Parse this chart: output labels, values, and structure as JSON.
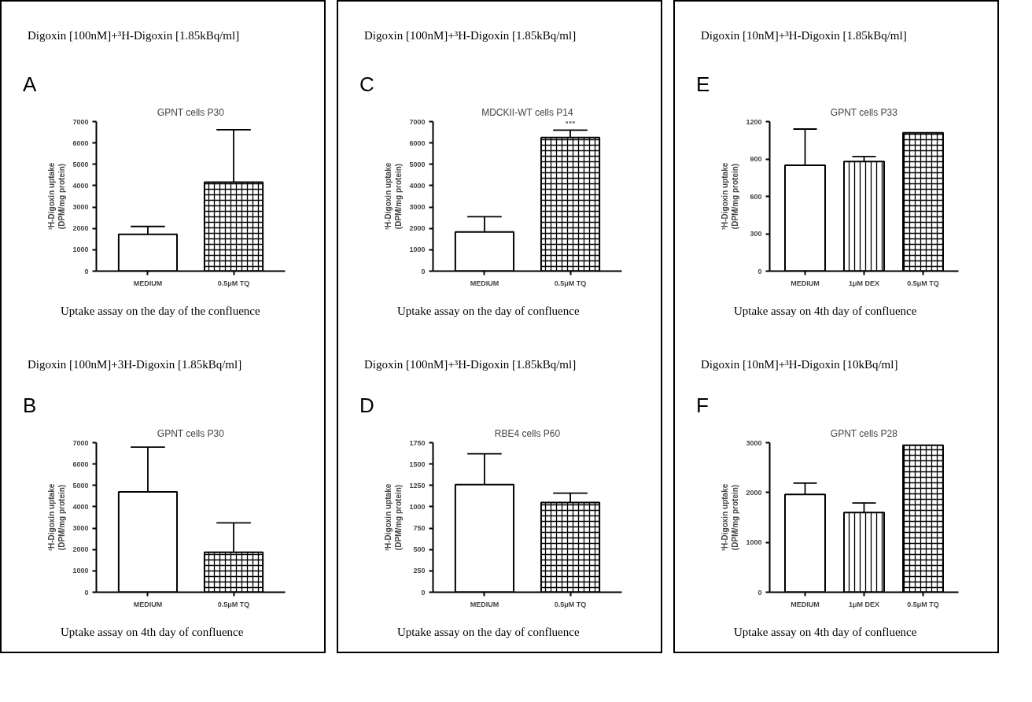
{
  "chart_data": [
    {
      "type": "bar",
      "title": "GPNT cells P30",
      "ylabel": "³H-Digoxin uptake\n(DPM/mg protein)",
      "categories": [
        "MEDIUM",
        "0.5μM TQ"
      ],
      "values": [
        1720,
        4160
      ],
      "errors": [
        [
          1720,
          2090
        ],
        [
          4160,
          6620
        ]
      ],
      "colors": [
        "#ffffff",
        "#ffffff"
      ],
      "ylim": [
        0,
        7000
      ],
      "yticks": [
        0,
        1000,
        2000,
        3000,
        4000,
        5000,
        6000,
        7000
      ],
      "grid": false,
      "annotations": [
        "A",
        "Digoxin [100nM]+³H-Digoxin [1.85kBq/ml]",
        "Uptake assay on the day of the confluence"
      ]
    },
    {
      "type": "bar",
      "title": "GPNT cells P30",
      "ylabel": "³H-Digoxin uptake\n(DPM/mg protein)",
      "categories": [
        "MEDIUM",
        "0.5μM TQ"
      ],
      "values": [
        4700,
        1870
      ],
      "errors": [
        [
          4700,
          6790
        ],
        [
          1870,
          3250
        ]
      ],
      "colors": [
        "#ffffff",
        "#ffffff"
      ],
      "ylim": [
        0,
        7000
      ],
      "yticks": [
        0,
        1000,
        2000,
        3000,
        4000,
        5000,
        6000,
        7000
      ],
      "grid": false,
      "annotations": [
        "B",
        "Digoxin [100nM]+3H-Digoxin [1.85kBq/ml]",
        "Uptake assay on 4th day of confluence"
      ]
    },
    {
      "type": "bar",
      "title": "MDCKII-WT cells P14",
      "ylabel": "³H-Digoxin uptake\n(DPM/mg protein)",
      "categories": [
        "MEDIUM",
        "0.5μM TQ"
      ],
      "values": [
        1830,
        6250
      ],
      "errors": [
        [
          1830,
          2550
        ],
        [
          6250,
          6600
        ]
      ],
      "colors": [
        "#ffffff",
        "#ffffff"
      ],
      "ylim": [
        0,
        7000
      ],
      "yticks": [
        0,
        1000,
        2000,
        3000,
        4000,
        5000,
        6000,
        7000
      ],
      "grid": false,
      "annotations": [
        "C",
        "Digoxin [100nM]+³H-Digoxin [1.85kBq/ml]",
        "Uptake assay on the day of confluence",
        {
          "text": "***",
          "x": "0.5μM TQ",
          "y": 6600
        }
      ]
    },
    {
      "type": "bar",
      "title": "RBE4 cells P60",
      "ylabel": "³H-Digoxin uptake\n(DPM/mg protein)",
      "categories": [
        "MEDIUM",
        "0.5μM TQ"
      ],
      "values": [
        1260,
        1050
      ],
      "errors": [
        [
          1260,
          1620
        ],
        [
          1050,
          1160
        ]
      ],
      "colors": [
        "#ffffff",
        "#ffffff"
      ],
      "ylim": [
        0,
        1750
      ],
      "yticks": [
        0,
        250,
        500,
        750,
        1000,
        1250,
        1500,
        1750
      ],
      "grid": false,
      "annotations": [
        "D",
        "Digoxin [100nM]+³H-Digoxin [1.85kBq/ml]",
        "Uptake assay on the day of confluence"
      ]
    },
    {
      "type": "bar",
      "title": "GPNT cells P33",
      "ylabel": "³H-Digoxin uptake\n(DPM/mg protein)",
      "categories": [
        "MEDIUM",
        "1μM DEX",
        "0.5μM TQ"
      ],
      "values": [
        850,
        880,
        1110
      ],
      "errors": [
        [
          850,
          1140
        ],
        [
          880,
          920
        ],
        null
      ],
      "colors": [
        "#ffffff",
        "#ffffff",
        "#ffffff"
      ],
      "ylim": [
        0,
        1200
      ],
      "yticks": [
        0,
        300,
        600,
        900,
        1200
      ],
      "grid": false,
      "annotations": [
        "E",
        "Digoxin [10nM]+³H-Digoxin [1.85kBq/ml]",
        "Uptake assay on 4th day of confluence"
      ]
    },
    {
      "type": "bar",
      "title": "GPNT cells P28",
      "ylabel": "³H-Digoxin uptake\n(DPM/mg protein)",
      "categories": [
        "MEDIUM",
        "1μM DEX",
        "0.5μM TQ"
      ],
      "values": [
        1960,
        1600,
        2950
      ],
      "errors": [
        [
          1960,
          2190
        ],
        [
          1600,
          1790
        ],
        null
      ],
      "colors": [
        "#ffffff",
        "#ffffff",
        "#ffffff"
      ],
      "ylim": [
        0,
        3000
      ],
      "yticks": [
        0,
        1000,
        2000,
        3000
      ],
      "grid": false,
      "annotations": [
        "F",
        "Digoxin [10nM]+³H-Digoxin [10kBq/ml]",
        "Uptake assay on 4th day of confluence"
      ]
    }
  ]
}
